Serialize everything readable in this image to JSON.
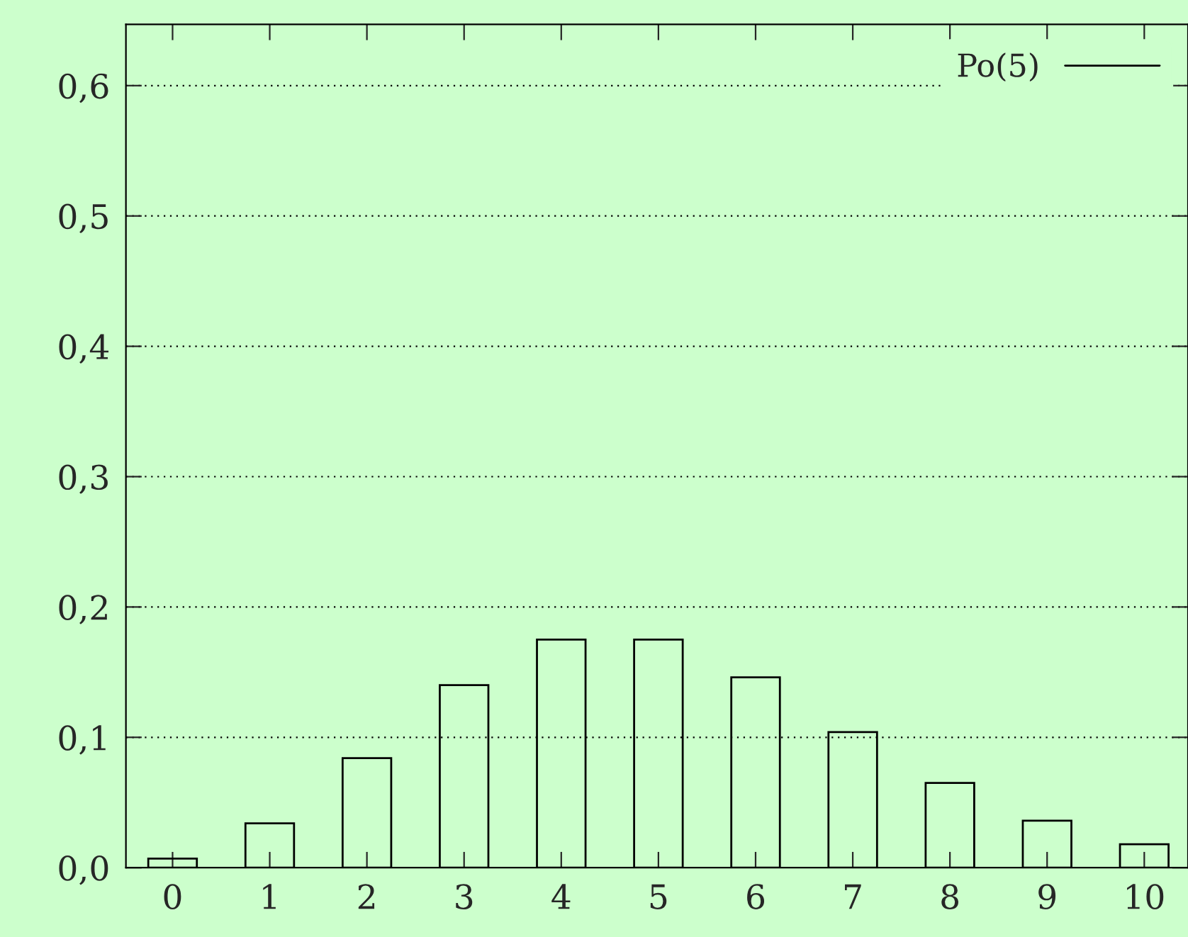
{
  "chart_data": {
    "type": "bar",
    "x": [
      0,
      1,
      2,
      3,
      4,
      5,
      6,
      7,
      8,
      9,
      10
    ],
    "series": [
      {
        "name": "Po(5)",
        "color": "#000000",
        "values": [
          0.007,
          0.034,
          0.084,
          0.14,
          0.175,
          0.175,
          0.146,
          0.104,
          0.065,
          0.036,
          0.018
        ]
      }
    ],
    "xlim": [
      -0.48,
      10.45
    ],
    "xticks": [
      0,
      1,
      2,
      3,
      4,
      5,
      6,
      7,
      8,
      9,
      10
    ],
    "ylim": [
      0,
      0.647
    ],
    "yticks": [
      {
        "value": 0,
        "label": "0,0"
      },
      {
        "value": 0.1,
        "label": "0,1"
      },
      {
        "value": 0.2,
        "label": "0,2"
      },
      {
        "value": 0.3,
        "label": "0,3"
      },
      {
        "value": 0.4,
        "label": "0,4"
      },
      {
        "value": 0.5,
        "label": "0,5"
      },
      {
        "value": 0.6,
        "label": "0,6"
      }
    ],
    "grid": "y",
    "legend": "top right"
  }
}
